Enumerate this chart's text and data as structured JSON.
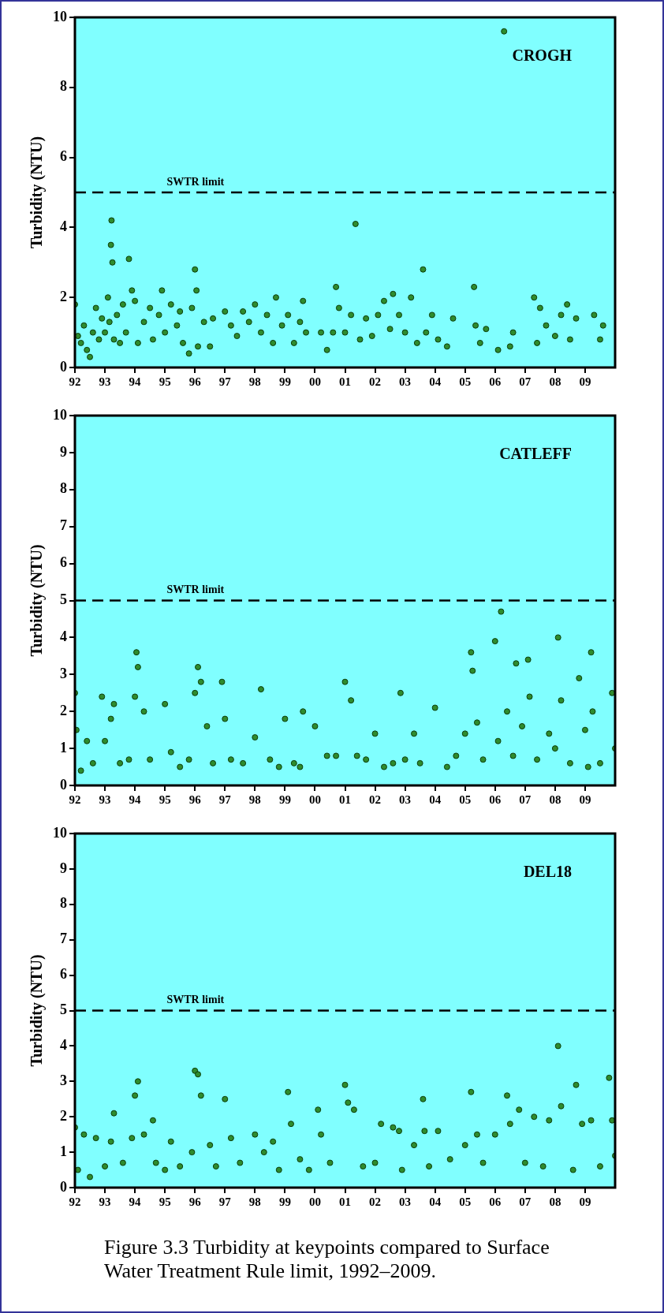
{
  "chart_data": [
    {
      "type": "scatter",
      "ylabel": "Turbidity (NTU)",
      "annotations": [
        "CROGH"
      ],
      "color": "#2e8b2e",
      "marker": "circle",
      "grid": false,
      "legend": false,
      "xlim": [
        1992,
        2010
      ],
      "xticks": [
        {
          "value": 1992,
          "label": "92"
        },
        {
          "value": 1993,
          "label": "93"
        },
        {
          "value": 1994,
          "label": "94"
        },
        {
          "value": 1995,
          "label": "95"
        },
        {
          "value": 1996,
          "label": "96"
        },
        {
          "value": 1997,
          "label": "97"
        },
        {
          "value": 1998,
          "label": "98"
        },
        {
          "value": 1999,
          "label": "99"
        },
        {
          "value": 2000,
          "label": "00"
        },
        {
          "value": 2001,
          "label": "01"
        },
        {
          "value": 2002,
          "label": "02"
        },
        {
          "value": 2003,
          "label": "03"
        },
        {
          "value": 2004,
          "label": "04"
        },
        {
          "value": 2005,
          "label": "05"
        },
        {
          "value": 2006,
          "label": "06"
        },
        {
          "value": 2007,
          "label": "07"
        },
        {
          "value": 2008,
          "label": "08"
        },
        {
          "value": 2009,
          "label": "09"
        }
      ],
      "ylim": [
        0,
        10
      ],
      "yticks": [
        0,
        2,
        4,
        6,
        8,
        10
      ],
      "ref_lines": [
        {
          "axis": "y",
          "value": 5,
          "label": "SWTR limit",
          "line_style": "dashed"
        }
      ],
      "x": [
        1992.0,
        1992.1,
        1992.2,
        1992.3,
        1992.4,
        1992.5,
        1992.6,
        1992.7,
        1992.8,
        1992.9,
        1993.0,
        1993.1,
        1993.15,
        1993.2,
        1993.22,
        1993.25,
        1993.3,
        1993.4,
        1993.5,
        1993.6,
        1993.7,
        1993.8,
        1993.9,
        1994.0,
        1994.1,
        1994.3,
        1994.5,
        1994.6,
        1994.8,
        1994.9,
        1995.0,
        1995.2,
        1995.4,
        1995.5,
        1995.6,
        1995.8,
        1995.9,
        1996.0,
        1996.05,
        1996.1,
        1996.3,
        1996.5,
        1996.6,
        1997.0,
        1997.2,
        1997.4,
        1997.6,
        1997.8,
        1998.0,
        1998.2,
        1998.4,
        1998.6,
        1998.7,
        1998.9,
        1999.1,
        1999.3,
        1999.5,
        1999.6,
        1999.7,
        2000.2,
        2000.4,
        2000.6,
        2000.7,
        2000.8,
        2001.0,
        2001.2,
        2001.35,
        2001.5,
        2001.7,
        2001.9,
        2002.1,
        2002.3,
        2002.5,
        2002.6,
        2002.8,
        2003.0,
        2003.2,
        2003.4,
        2003.6,
        2003.7,
        2003.9,
        2004.1,
        2004.4,
        2004.6,
        2005.3,
        2005.35,
        2005.5,
        2005.7,
        2006.1,
        2006.3,
        2006.5,
        2006.6,
        2007.3,
        2007.4,
        2007.5,
        2007.7,
        2008.0,
        2008.2,
        2008.4,
        2008.5,
        2008.7,
        2009.3,
        2009.5,
        2009.6
      ],
      "values": [
        1.8,
        0.9,
        0.7,
        1.2,
        0.5,
        0.3,
        1.0,
        1.7,
        0.8,
        1.4,
        1.0,
        2.0,
        1.3,
        3.5,
        4.2,
        3.0,
        0.8,
        1.5,
        0.7,
        1.8,
        1.0,
        3.1,
        2.2,
        1.9,
        0.7,
        1.3,
        1.7,
        0.8,
        1.5,
        2.2,
        1.0,
        1.8,
        1.2,
        1.6,
        0.7,
        0.4,
        1.7,
        2.8,
        2.2,
        0.6,
        1.3,
        0.6,
        1.4,
        1.6,
        1.2,
        0.9,
        1.6,
        1.3,
        1.8,
        1.0,
        1.5,
        0.7,
        2.0,
        1.2,
        1.5,
        0.7,
        1.3,
        1.9,
        1.0,
        1.0,
        0.5,
        1.0,
        2.3,
        1.7,
        1.0,
        1.5,
        4.1,
        0.8,
        1.4,
        0.9,
        1.5,
        1.9,
        1.1,
        2.1,
        1.5,
        1.0,
        2.0,
        0.7,
        2.8,
        1.0,
        1.5,
        0.8,
        0.6,
        1.4,
        2.3,
        1.2,
        0.7,
        1.1,
        0.5,
        9.6,
        0.6,
        1.0,
        2.0,
        0.7,
        1.7,
        1.2,
        0.9,
        1.5,
        1.8,
        0.8,
        1.4,
        1.5,
        0.8,
        1.2
      ]
    },
    {
      "type": "scatter",
      "ylabel": "Turbidity (NTU)",
      "annotations": [
        "CATLEFF"
      ],
      "color": "#2e8b2e",
      "marker": "circle",
      "grid": false,
      "legend": false,
      "xlim": [
        1992,
        2010
      ],
      "xticks": [
        {
          "value": 1992,
          "label": "92"
        },
        {
          "value": 1993,
          "label": "93"
        },
        {
          "value": 1994,
          "label": "94"
        },
        {
          "value": 1995,
          "label": "95"
        },
        {
          "value": 1996,
          "label": "96"
        },
        {
          "value": 1997,
          "label": "97"
        },
        {
          "value": 1998,
          "label": "98"
        },
        {
          "value": 1999,
          "label": "99"
        },
        {
          "value": 2000,
          "label": "00"
        },
        {
          "value": 2001,
          "label": "01"
        },
        {
          "value": 2002,
          "label": "02"
        },
        {
          "value": 2003,
          "label": "03"
        },
        {
          "value": 2004,
          "label": "04"
        },
        {
          "value": 2005,
          "label": "05"
        },
        {
          "value": 2006,
          "label": "06"
        },
        {
          "value": 2007,
          "label": "07"
        },
        {
          "value": 2008,
          "label": "08"
        },
        {
          "value": 2009,
          "label": "09"
        }
      ],
      "ylim": [
        0,
        10
      ],
      "yticks": [
        0,
        1,
        2,
        3,
        4,
        5,
        6,
        7,
        8,
        9,
        10
      ],
      "ref_lines": [
        {
          "axis": "y",
          "value": 5,
          "label": "SWTR limit",
          "line_style": "dashed"
        }
      ],
      "x": [
        1992.0,
        1992.05,
        1992.2,
        1992.4,
        1992.6,
        1992.9,
        1993.0,
        1993.2,
        1993.3,
        1993.5,
        1993.8,
        1994.0,
        1994.05,
        1994.1,
        1994.3,
        1994.5,
        1995.0,
        1995.2,
        1995.5,
        1995.8,
        1996.0,
        1996.1,
        1996.2,
        1996.4,
        1996.6,
        1996.9,
        1997.0,
        1997.2,
        1997.6,
        1998.0,
        1998.2,
        1998.5,
        1998.8,
        1999.0,
        1999.3,
        1999.5,
        1999.6,
        2000.0,
        2000.4,
        2000.7,
        2001.0,
        2001.2,
        2001.4,
        2001.7,
        2002.0,
        2002.3,
        2002.6,
        2002.85,
        2003.0,
        2003.3,
        2003.5,
        2004.0,
        2004.4,
        2004.7,
        2005.0,
        2005.2,
        2005.25,
        2005.4,
        2005.6,
        2006.0,
        2006.1,
        2006.2,
        2006.4,
        2006.6,
        2006.7,
        2006.9,
        2007.1,
        2007.15,
        2007.4,
        2007.8,
        2008.0,
        2008.1,
        2008.2,
        2008.5,
        2008.8,
        2009.0,
        2009.1,
        2009.2,
        2009.25,
        2009.5,
        2009.9,
        2010.0
      ],
      "values": [
        2.5,
        1.5,
        0.4,
        1.2,
        0.6,
        2.4,
        1.2,
        1.8,
        2.2,
        0.6,
        0.7,
        2.4,
        3.6,
        3.2,
        2.0,
        0.7,
        2.2,
        0.9,
        0.5,
        0.7,
        2.5,
        3.2,
        2.8,
        1.6,
        0.6,
        2.8,
        1.8,
        0.7,
        0.6,
        1.3,
        2.6,
        0.7,
        0.5,
        1.8,
        0.6,
        0.5,
        2.0,
        1.6,
        0.8,
        0.8,
        2.8,
        2.3,
        0.8,
        0.7,
        1.4,
        0.5,
        0.6,
        2.5,
        0.7,
        1.4,
        0.6,
        2.1,
        0.5,
        0.8,
        1.4,
        3.6,
        3.1,
        1.7,
        0.7,
        3.9,
        1.2,
        4.7,
        2.0,
        0.8,
        3.3,
        1.6,
        3.4,
        2.4,
        0.7,
        1.4,
        1.0,
        4.0,
        2.3,
        0.6,
        2.9,
        1.5,
        0.5,
        3.6,
        2.0,
        0.6,
        2.5,
        1.0
      ]
    },
    {
      "type": "scatter",
      "ylabel": "Turbidity (NTU)",
      "annotations": [
        "DEL18",
        "Figure 3.3  Turbidity at keypoints compared to Surface Water Treatment Rule limit, 1992–2009."
      ],
      "color": "#2e8b2e",
      "marker": "circle",
      "grid": false,
      "legend": false,
      "xlim": [
        1992,
        2010
      ],
      "xticks": [
        {
          "value": 1992,
          "label": "92"
        },
        {
          "value": 1993,
          "label": "93"
        },
        {
          "value": 1994,
          "label": "94"
        },
        {
          "value": 1995,
          "label": "95"
        },
        {
          "value": 1996,
          "label": "96"
        },
        {
          "value": 1997,
          "label": "97"
        },
        {
          "value": 1998,
          "label": "98"
        },
        {
          "value": 1999,
          "label": "99"
        },
        {
          "value": 2000,
          "label": "00"
        },
        {
          "value": 2001,
          "label": "01"
        },
        {
          "value": 2002,
          "label": "02"
        },
        {
          "value": 2003,
          "label": "03"
        },
        {
          "value": 2004,
          "label": "04"
        },
        {
          "value": 2005,
          "label": "05"
        },
        {
          "value": 2006,
          "label": "06"
        },
        {
          "value": 2007,
          "label": "07"
        },
        {
          "value": 2008,
          "label": "08"
        },
        {
          "value": 2009,
          "label": "09"
        }
      ],
      "ylim": [
        0,
        10
      ],
      "yticks": [
        0,
        1,
        2,
        3,
        4,
        5,
        6,
        7,
        8,
        9,
        10
      ],
      "ref_lines": [
        {
          "axis": "y",
          "value": 5,
          "label": "SWTR limit",
          "line_style": "dashed"
        }
      ],
      "x": [
        1992.0,
        1992.1,
        1992.3,
        1992.5,
        1992.7,
        1993.0,
        1993.2,
        1993.3,
        1993.6,
        1993.9,
        1994.0,
        1994.1,
        1994.3,
        1994.6,
        1994.7,
        1995.0,
        1995.2,
        1995.5,
        1995.9,
        1996.0,
        1996.1,
        1996.2,
        1996.5,
        1996.7,
        1997.0,
        1997.2,
        1997.5,
        1998.0,
        1998.3,
        1998.6,
        1998.8,
        1999.1,
        1999.2,
        1999.5,
        1999.8,
        2000.1,
        2000.2,
        2000.5,
        2001.0,
        2001.1,
        2001.3,
        2001.6,
        2002.0,
        2002.2,
        2002.6,
        2002.8,
        2002.9,
        2003.3,
        2003.6,
        2003.65,
        2003.8,
        2004.1,
        2004.5,
        2005.0,
        2005.2,
        2005.4,
        2005.6,
        2006.0,
        2006.4,
        2006.5,
        2006.8,
        2007.0,
        2007.3,
        2007.6,
        2007.8,
        2008.1,
        2008.2,
        2008.6,
        2008.7,
        2008.9,
        2009.2,
        2009.5,
        2009.8,
        2009.9,
        2010.0
      ],
      "values": [
        1.7,
        0.5,
        1.5,
        0.3,
        1.4,
        0.6,
        1.3,
        2.1,
        0.7,
        1.4,
        2.6,
        3.0,
        1.5,
        1.9,
        0.7,
        0.5,
        1.3,
        0.6,
        1.0,
        3.3,
        3.2,
        2.6,
        1.2,
        0.6,
        2.5,
        1.4,
        0.7,
        1.5,
        1.0,
        1.3,
        0.5,
        2.7,
        1.8,
        0.8,
        0.5,
        2.2,
        1.5,
        0.7,
        2.9,
        2.4,
        2.2,
        0.6,
        0.7,
        1.8,
        1.7,
        1.6,
        0.5,
        1.2,
        2.5,
        1.6,
        0.6,
        1.6,
        0.8,
        1.2,
        2.7,
        1.5,
        0.7,
        1.5,
        2.6,
        1.8,
        2.2,
        0.7,
        2.0,
        0.6,
        1.9,
        4.0,
        2.3,
        0.5,
        2.9,
        1.8,
        1.9,
        0.6,
        3.1,
        1.9,
        0.9
      ]
    }
  ]
}
